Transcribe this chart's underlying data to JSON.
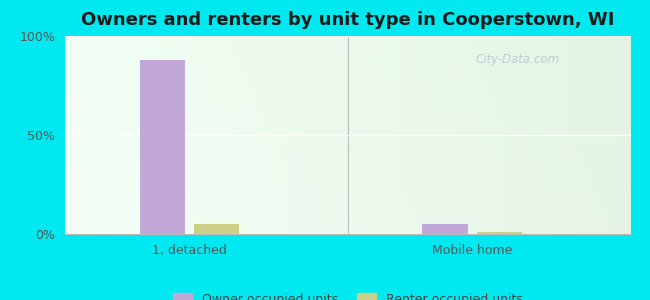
{
  "title": "Owners and renters by unit type in Cooperstown, WI",
  "categories": [
    "1, detached",
    "Mobile home"
  ],
  "owner_values": [
    88,
    5
  ],
  "renter_values": [
    5,
    1
  ],
  "owner_color": "#c2a8d8",
  "renter_color": "#cccf88",
  "ylim": [
    0,
    100
  ],
  "yticks": [
    0,
    50,
    100
  ],
  "ytick_labels": [
    "0%",
    "50%",
    "100%"
  ],
  "legend_owner": "Owner occupied units",
  "legend_renter": "Renter occupied units",
  "bar_width": 0.08,
  "group_positions": [
    0.22,
    0.72
  ],
  "outer_bg": "#00e8f0",
  "plot_bg_left": "#f0fff5",
  "plot_bg_right": "#e0f0e8",
  "watermark": "City-Data.com",
  "title_fontsize": 13,
  "axis_label_fontsize": 9
}
